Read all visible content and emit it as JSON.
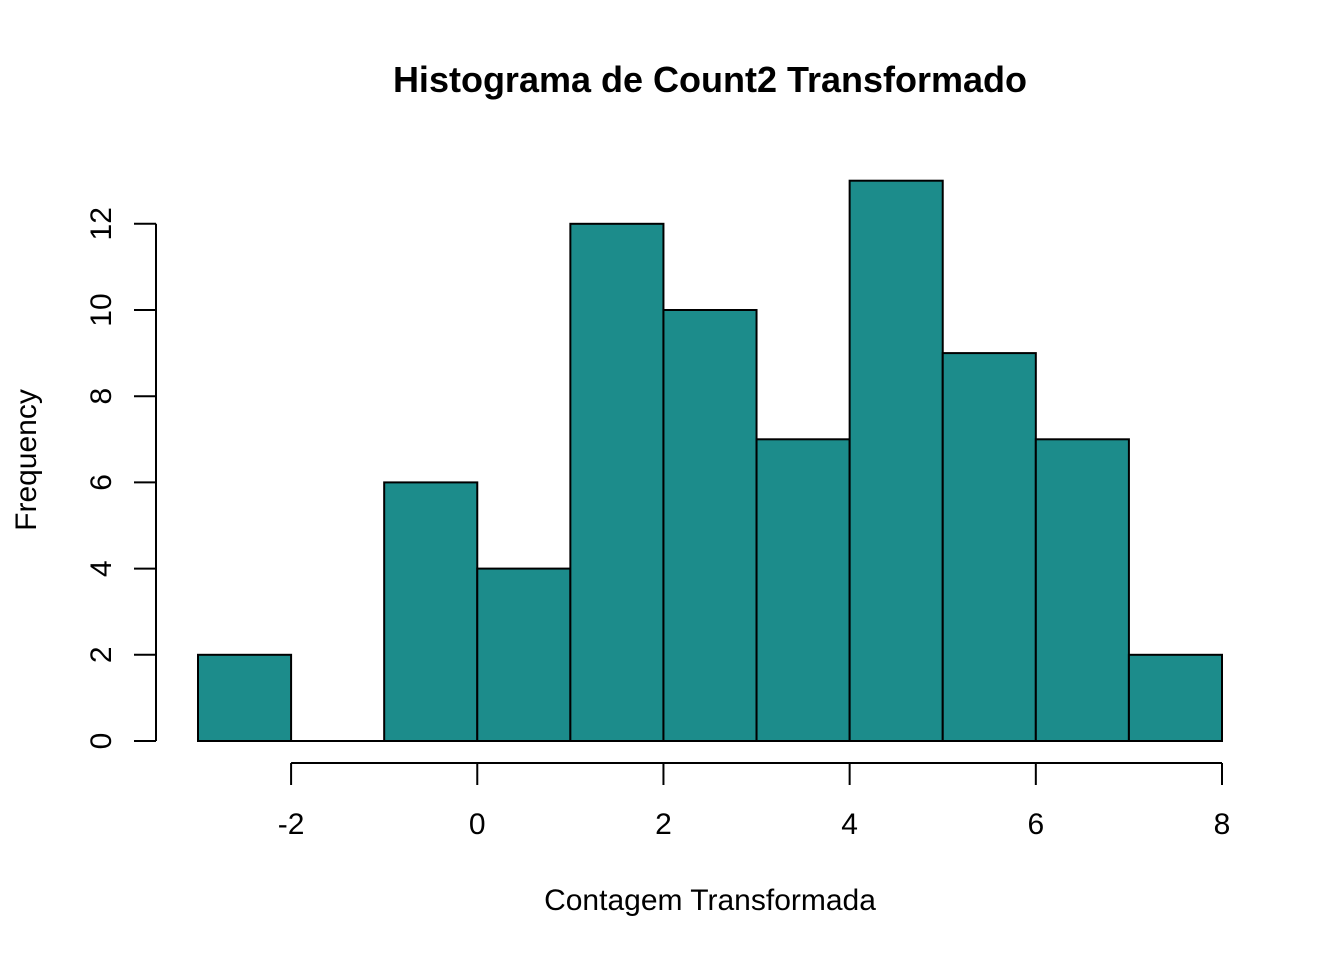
{
  "chart_data": {
    "type": "bar",
    "title": "Histograma de Count2 Transformado",
    "xlabel": "Contagem Transformada",
    "ylabel": "Frequency",
    "bins": [
      {
        "start": -3,
        "end": -2,
        "count": 2
      },
      {
        "start": -2,
        "end": -1,
        "count": 0
      },
      {
        "start": -1,
        "end": 0,
        "count": 6
      },
      {
        "start": 0,
        "end": 1,
        "count": 4
      },
      {
        "start": 1,
        "end": 2,
        "count": 12
      },
      {
        "start": 2,
        "end": 3,
        "count": 10
      },
      {
        "start": 3,
        "end": 4,
        "count": 7
      },
      {
        "start": 4,
        "end": 5,
        "count": 13
      },
      {
        "start": 5,
        "end": 6,
        "count": 9
      },
      {
        "start": 6,
        "end": 7,
        "count": 7
      },
      {
        "start": 7,
        "end": 8,
        "count": 2
      }
    ],
    "x_ticks": [
      "-2",
      "0",
      "2",
      "4",
      "6",
      "8"
    ],
    "y_ticks": [
      "0",
      "2",
      "4",
      "6",
      "8",
      "10",
      "12"
    ],
    "xlim": [
      -3,
      8
    ],
    "ylim": [
      0,
      13
    ],
    "grid": false,
    "bar_color": "#1c8c8b"
  }
}
